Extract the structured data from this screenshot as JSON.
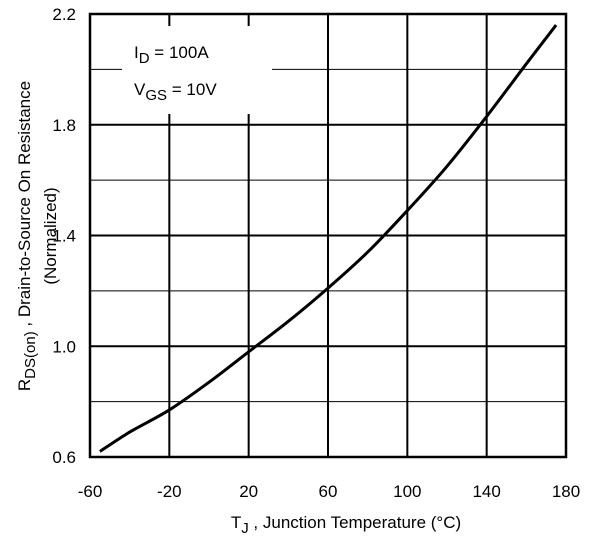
{
  "chart_data": {
    "type": "line",
    "title": "",
    "x_ticks": [
      "-60",
      "-20",
      "20",
      "60",
      "100",
      "140",
      "180"
    ],
    "y_ticks": [
      "0.6",
      "1.0",
      "1.4",
      "1.8",
      "2.2"
    ],
    "xlim": [
      -60,
      180
    ],
    "ylim": [
      0.6,
      2.2
    ],
    "x_gridlines": [
      -60,
      -20,
      20,
      60,
      100,
      140,
      180
    ],
    "y_gridlines": [
      0.6,
      0.8,
      1.0,
      1.2,
      1.4,
      1.6,
      1.8,
      2.0,
      2.2
    ],
    "grid": true,
    "xlabel": {
      "main": "T",
      "sub": "J",
      "rest": " , Junction Temperature (°C)"
    },
    "ylabel": {
      "main": "R",
      "sub": "DS(on)",
      "rest": " , Drain-to-Source On Resistance",
      "line2": "(Normalized)"
    },
    "annotation": {
      "line1": {
        "main": "I",
        "sub": "D",
        "rest": " = 100A"
      },
      "line2": {
        "main": "V",
        "sub": "GS",
        "rest": " = 10V"
      }
    },
    "series": [
      {
        "x": [
          -55,
          -40,
          -20,
          0,
          20,
          40,
          60,
          80,
          100,
          120,
          140,
          160,
          175
        ],
        "y": [
          0.62,
          0.69,
          0.77,
          0.87,
          0.98,
          1.09,
          1.21,
          1.34,
          1.49,
          1.65,
          1.83,
          2.02,
          2.16
        ]
      }
    ],
    "line_color": "#000000"
  }
}
